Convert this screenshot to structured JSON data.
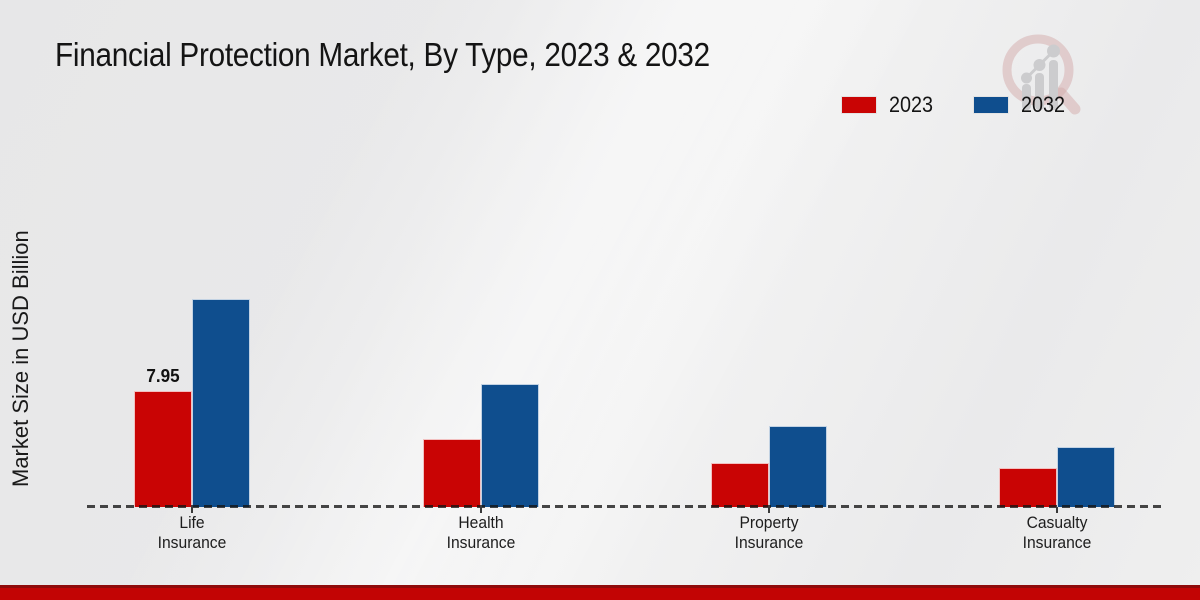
{
  "chart_data": {
    "type": "bar",
    "title": "Financial Protection Market, By Type, 2023 & 2032",
    "ylabel": "Market Size in USD Billion",
    "xlabel": "",
    "categories": [
      "Life Insurance",
      "Health Insurance",
      "Property Insurance",
      "Casualty Insurance"
    ],
    "series": [
      {
        "name": "2023",
        "color": "#c90404",
        "values": [
          7.95,
          4.65,
          3.0,
          2.7
        ]
      },
      {
        "name": "2032",
        "color": "#0f4e8e",
        "values": [
          14.25,
          8.4,
          5.55,
          4.1
        ]
      }
    ],
    "annotations": [
      {
        "category_index": 0,
        "series_index": 0,
        "text": "7.95"
      }
    ],
    "legend_position": "top-right",
    "grid": "off",
    "baseline_style": "dashed",
    "ylim": [
      0,
      15
    ]
  },
  "branding": {
    "logo_icon": "magnifier-bar-chart-logo",
    "logo_ring_color": "#cf9f9f",
    "logo_bar_color": "#c7c7c9",
    "footer_band_color": "#c20404",
    "footer_band_accent": "#8f0b0b"
  }
}
